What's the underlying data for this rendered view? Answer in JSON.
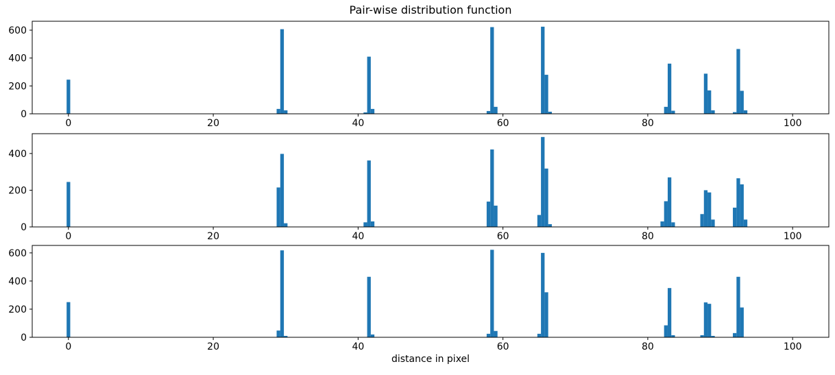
{
  "chart_data": [
    {
      "type": "bar",
      "subplot": "top",
      "title": "Pair-wise distribution function",
      "xlabel": "",
      "ylabel": "",
      "color": "#1f77b4",
      "xlim": [
        -5,
        105
      ],
      "ylim": [
        0,
        664
      ],
      "xticks": [
        0,
        20,
        40,
        60,
        80,
        100
      ],
      "yticks": [
        0,
        200,
        400,
        600
      ],
      "bar_width": 0.5,
      "bars": [
        [
          0,
          245
        ],
        [
          29,
          35
        ],
        [
          29.5,
          607
        ],
        [
          30,
          25
        ],
        [
          41,
          10
        ],
        [
          41.5,
          410
        ],
        [
          42,
          35
        ],
        [
          58,
          20
        ],
        [
          58.5,
          622
        ],
        [
          59,
          50
        ],
        [
          65.5,
          625
        ],
        [
          66,
          280
        ],
        [
          66.5,
          15
        ],
        [
          82.5,
          50
        ],
        [
          83,
          360
        ],
        [
          83.5,
          22
        ],
        [
          88,
          288
        ],
        [
          88.5,
          168
        ],
        [
          89,
          25
        ],
        [
          92,
          12
        ],
        [
          92.5,
          465
        ],
        [
          93,
          165
        ],
        [
          93.5,
          25
        ]
      ]
    },
    {
      "type": "bar",
      "subplot": "middle",
      "title": "",
      "xlabel": "",
      "ylabel": "",
      "color": "#1f77b4",
      "xlim": [
        -5,
        105
      ],
      "ylim": [
        0,
        508
      ],
      "xticks": [
        0,
        20,
        40,
        60,
        80,
        100
      ],
      "yticks": [
        0,
        200,
        400
      ],
      "bar_width": 0.5,
      "bars": [
        [
          0,
          245
        ],
        [
          29,
          215
        ],
        [
          29.5,
          398
        ],
        [
          30,
          20
        ],
        [
          41,
          25
        ],
        [
          41.5,
          362
        ],
        [
          42,
          30
        ],
        [
          58,
          138
        ],
        [
          58.5,
          422
        ],
        [
          59,
          116
        ],
        [
          65,
          65
        ],
        [
          65.5,
          490
        ],
        [
          66,
          318
        ],
        [
          66.5,
          15
        ],
        [
          82,
          30
        ],
        [
          82.5,
          140
        ],
        [
          83,
          270
        ],
        [
          83.5,
          25
        ],
        [
          87.5,
          70
        ],
        [
          88,
          200
        ],
        [
          88.5,
          188
        ],
        [
          89,
          40
        ],
        [
          92,
          105
        ],
        [
          92.5,
          265
        ],
        [
          93,
          232
        ],
        [
          93.5,
          40
        ]
      ]
    },
    {
      "type": "bar",
      "subplot": "bottom",
      "title": "",
      "xlabel": "distance in pixel",
      "ylabel": "",
      "color": "#1f77b4",
      "xlim": [
        -5,
        105
      ],
      "ylim": [
        0,
        653
      ],
      "xticks": [
        0,
        20,
        40,
        60,
        80,
        100
      ],
      "yticks": [
        0,
        200,
        400,
        600
      ],
      "bar_width": 0.5,
      "bars": [
        [
          0,
          250
        ],
        [
          29,
          48
        ],
        [
          29.5,
          618
        ],
        [
          30,
          10
        ],
        [
          41.5,
          430
        ],
        [
          42,
          20
        ],
        [
          58,
          25
        ],
        [
          58.5,
          622
        ],
        [
          59,
          45
        ],
        [
          65,
          25
        ],
        [
          65.5,
          600
        ],
        [
          66,
          320
        ],
        [
          82.5,
          85
        ],
        [
          83,
          350
        ],
        [
          83.5,
          15
        ],
        [
          87.5,
          15
        ],
        [
          88,
          248
        ],
        [
          88.5,
          238
        ],
        [
          89,
          10
        ],
        [
          92,
          30
        ],
        [
          92.5,
          430
        ],
        [
          93,
          212
        ]
      ]
    }
  ]
}
